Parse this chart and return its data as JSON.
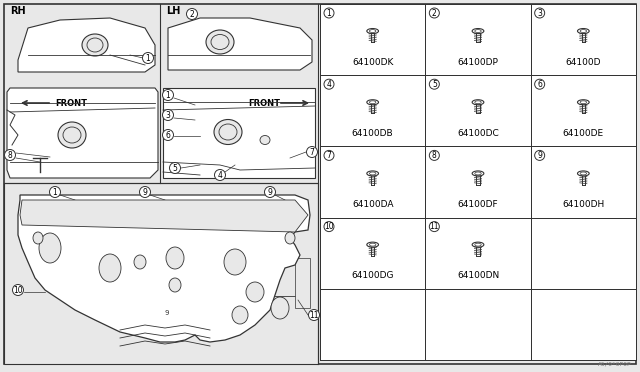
{
  "bg_color": "#e8e8e8",
  "panel_bg": "#ffffff",
  "line_color": "#555555",
  "dark_line": "#333333",
  "title_code": "A6/0*0P0P",
  "parts": [
    {
      "num": 1,
      "code": "64100DK"
    },
    {
      "num": 2,
      "code": "64100DP"
    },
    {
      "num": 3,
      "code": "64100D"
    },
    {
      "num": 4,
      "code": "64100DB"
    },
    {
      "num": 5,
      "code": "64100DC"
    },
    {
      "num": 6,
      "code": "64100DE"
    },
    {
      "num": 7,
      "code": "64100DA"
    },
    {
      "num": 8,
      "code": "64100DF"
    },
    {
      "num": 9,
      "code": "64100DH"
    },
    {
      "num": 10,
      "code": "64100DG"
    },
    {
      "num": 11,
      "code": "64100DN"
    }
  ],
  "rh_label": "RH",
  "lh_label": "LH",
  "front_label": "FRONT",
  "figsize": [
    6.4,
    3.72
  ],
  "dpi": 100
}
